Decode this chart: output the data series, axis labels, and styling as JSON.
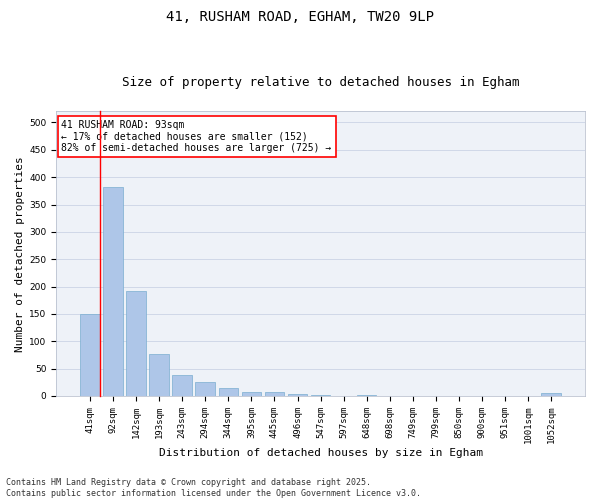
{
  "title_line1": "41, RUSHAM ROAD, EGHAM, TW20 9LP",
  "title_line2": "Size of property relative to detached houses in Egham",
  "xlabel": "Distribution of detached houses by size in Egham",
  "ylabel": "Number of detached properties",
  "bar_labels": [
    "41sqm",
    "92sqm",
    "142sqm",
    "193sqm",
    "243sqm",
    "294sqm",
    "344sqm",
    "395sqm",
    "445sqm",
    "496sqm",
    "547sqm",
    "597sqm",
    "648sqm",
    "698sqm",
    "749sqm",
    "799sqm",
    "850sqm",
    "900sqm",
    "951sqm",
    "1001sqm",
    "1052sqm"
  ],
  "bar_values": [
    150,
    382,
    192,
    76,
    38,
    25,
    15,
    7,
    7,
    3,
    1,
    0,
    1,
    0,
    0,
    0,
    0,
    0,
    0,
    0,
    5
  ],
  "bar_color": "#aec6e8",
  "bar_edge_color": "#7aaed0",
  "grid_color": "#d0d8e8",
  "background_color": "#eef2f8",
  "annotation_line1": "41 RUSHAM ROAD: 93sqm",
  "annotation_line2": "← 17% of detached houses are smaller (152)",
  "annotation_line3": "82% of semi-detached houses are larger (725) →",
  "vline_x_index": 0,
  "ylim": [
    0,
    520
  ],
  "yticks": [
    0,
    50,
    100,
    150,
    200,
    250,
    300,
    350,
    400,
    450,
    500
  ],
  "footer_line1": "Contains HM Land Registry data © Crown copyright and database right 2025.",
  "footer_line2": "Contains public sector information licensed under the Open Government Licence v3.0.",
  "title_fontsize": 10,
  "subtitle_fontsize": 9,
  "axis_label_fontsize": 8,
  "tick_fontsize": 6.5,
  "annotation_fontsize": 7,
  "footer_fontsize": 6
}
